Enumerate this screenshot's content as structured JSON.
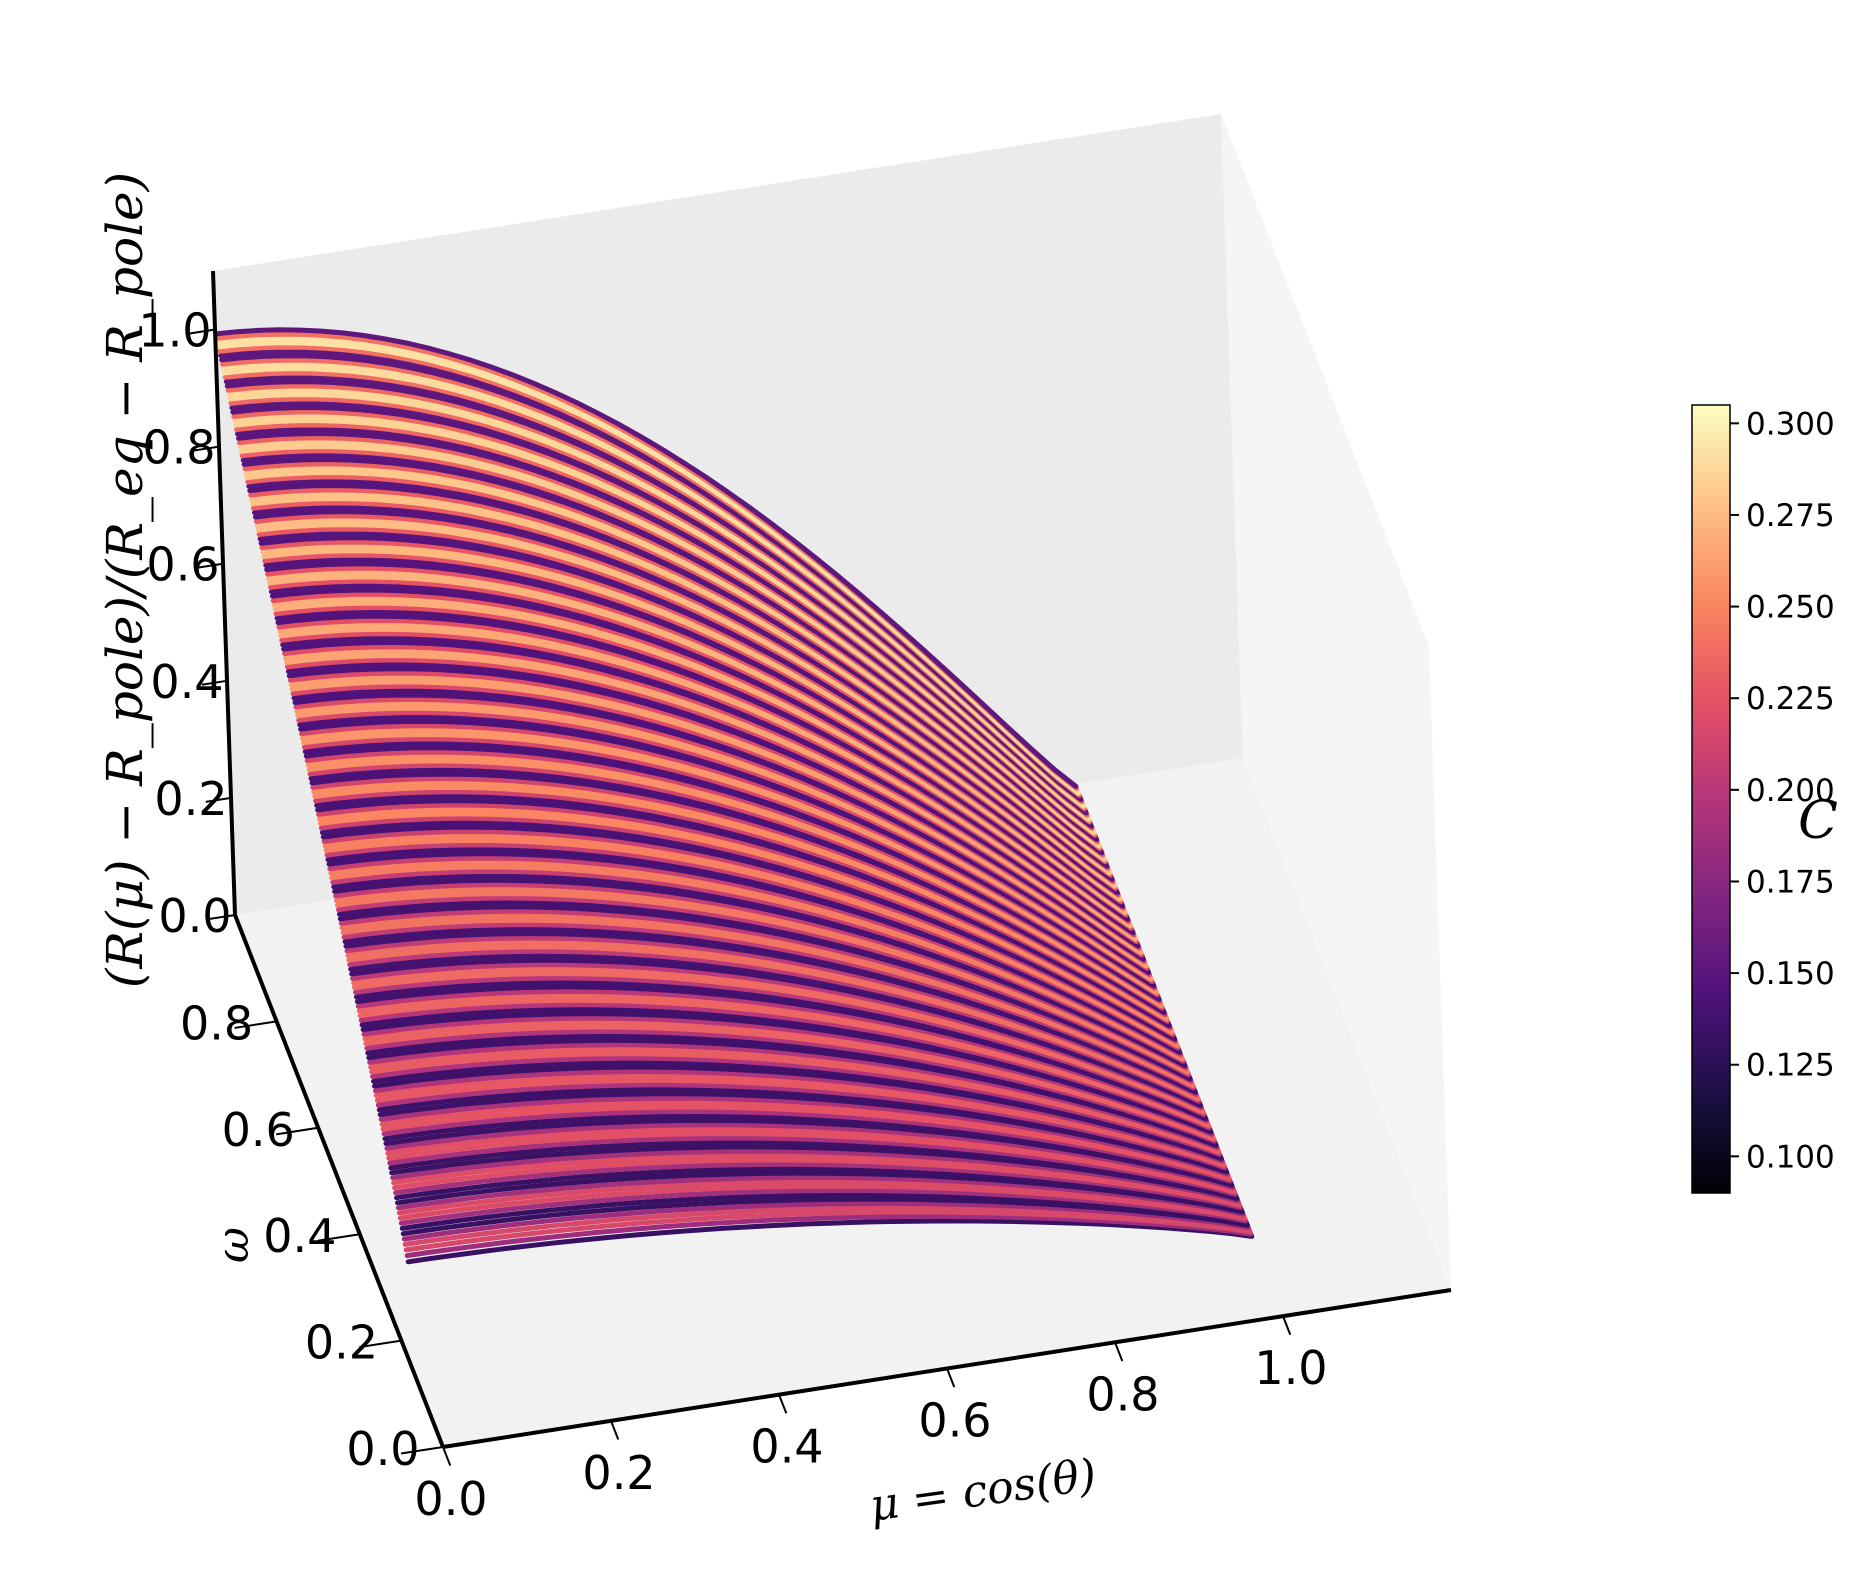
{
  "chart_data": {
    "type": "scatter",
    "projection": "3d",
    "title": "",
    "xlabel": "μ = cos(θ)",
    "ylabel": "ω",
    "zlabel": "(R(μ) − R_pole)/(R_eq − R_pole)",
    "x_ticks": [
      "0.0",
      "0.2",
      "0.4",
      "0.6",
      "0.8",
      "1.0"
    ],
    "y_ticks": [
      "0.0",
      "0.2",
      "0.4",
      "0.6",
      "0.8"
    ],
    "z_ticks": [
      "0.0",
      "0.2",
      "0.4",
      "0.6",
      "0.8",
      "1.0"
    ],
    "xlim": [
      0,
      1.05
    ],
    "ylim": [
      0,
      1.0
    ],
    "zlim": [
      0,
      1.1
    ],
    "grid": false,
    "colormap": "magma",
    "colorbar": {
      "label": "C",
      "range": [
        0.09,
        0.305
      ],
      "ticks": [
        "0.100",
        "0.125",
        "0.150",
        "0.175",
        "0.200",
        "0.225",
        "0.250",
        "0.275",
        "0.300"
      ]
    },
    "series_description": "family of curves z(μ) for ω from about 0.15 to 1.0; z ≈ 1 at μ = 0, z ≈ 0 at μ = 1; at μ = 0 the curves start near z ≈ 0.2 for small ω and z ≈ 1.0 for ω ≈ 1",
    "omega_range": [
      0.15,
      1.0
    ],
    "mu_range": [
      0.0,
      1.0
    ]
  }
}
